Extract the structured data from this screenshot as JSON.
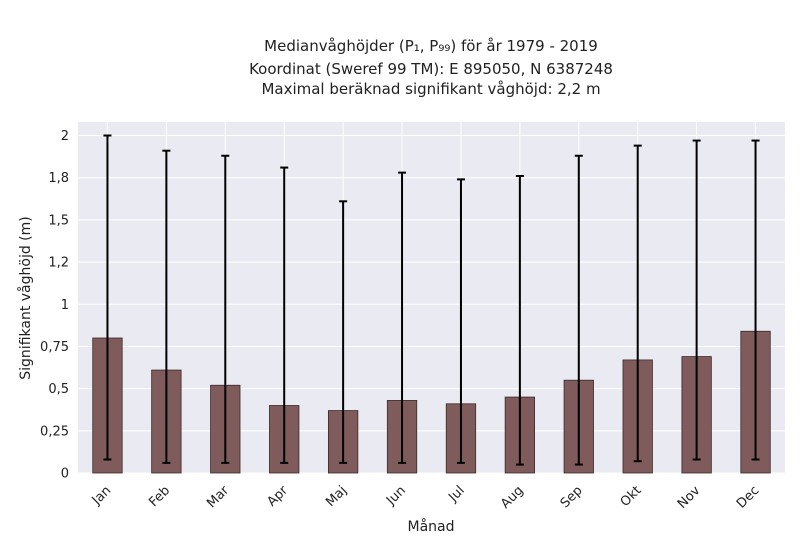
{
  "chart_data": {
    "type": "bar",
    "title_lines": [
      "Medianvåghöjder (P₁, P₉₉) för år 1979 - 2019",
      "Koordinat (Sweref 99 TM): E 895050, N 6387248",
      "Maximal beräknad signifikant våghöjd: 2,2 m"
    ],
    "xlabel": "Månad",
    "ylabel": "Signifikant våghöjd (m)",
    "categories": [
      "Jan",
      "Feb",
      "Mar",
      "Apr",
      "Maj",
      "Jun",
      "Jul",
      "Aug",
      "Sep",
      "Okt",
      "Nov",
      "Dec"
    ],
    "values": [
      0.8,
      0.61,
      0.52,
      0.4,
      0.37,
      0.43,
      0.41,
      0.45,
      0.55,
      0.67,
      0.69,
      0.84
    ],
    "error_low": [
      0.08,
      0.06,
      0.06,
      0.06,
      0.06,
      0.06,
      0.06,
      0.05,
      0.05,
      0.07,
      0.08,
      0.08
    ],
    "error_high": [
      2.0,
      1.91,
      1.88,
      1.81,
      1.61,
      1.78,
      1.74,
      1.76,
      1.88,
      1.94,
      1.97,
      1.97
    ],
    "ylim": [
      0,
      2.08
    ],
    "yticks": [
      0,
      0.25,
      0.5,
      0.75,
      1,
      1.25,
      1.5,
      1.75,
      2
    ],
    "ytick_labels": [
      "0",
      "0,25",
      "0,5",
      "0,75",
      "1",
      "1,2",
      "1,5",
      "1,8",
      "2"
    ],
    "grid": true,
    "bar_color": "#7f5b5b",
    "bar_edge_color": "#3a2a2a",
    "errorbar_color": "#000000",
    "background_color": "#eaeaf2",
    "grid_color": "#ffffff"
  }
}
